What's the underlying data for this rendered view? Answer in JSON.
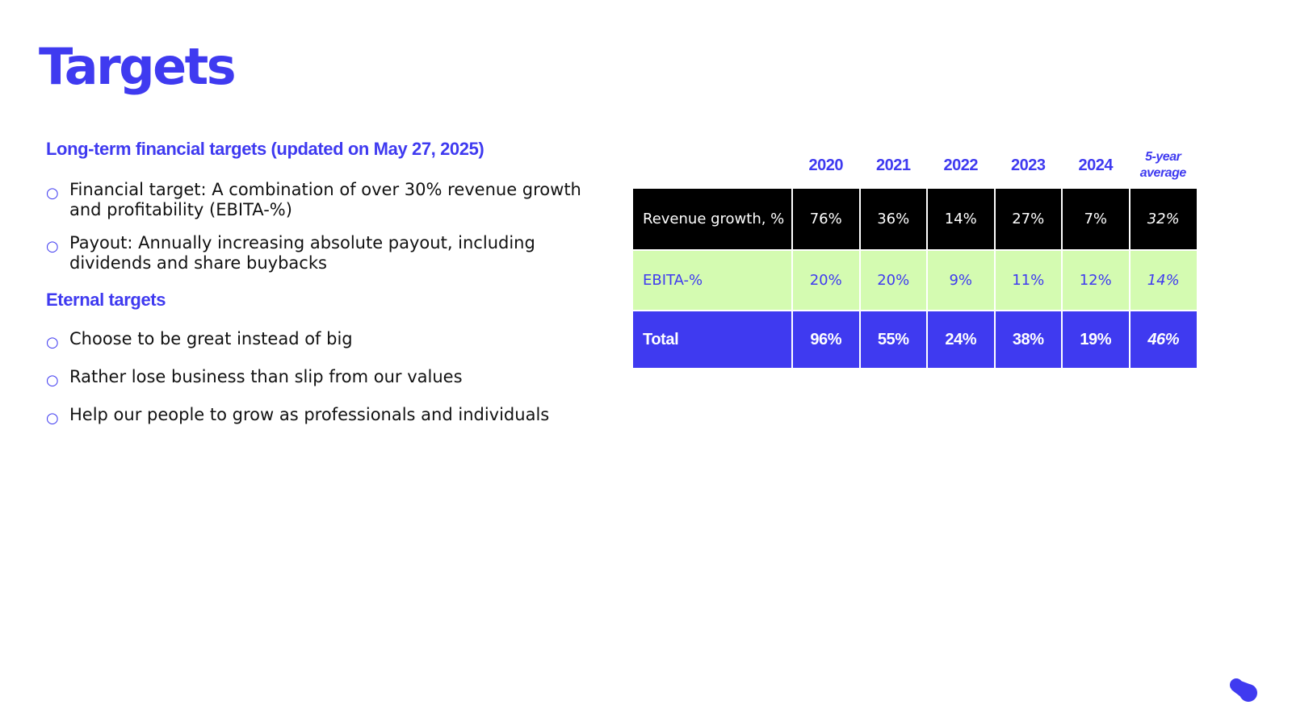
{
  "title": "Targets",
  "financial": {
    "heading": "Long-term financial targets (updated on May 27, 2025)",
    "items": [
      "Financial target: A combination of over 30% revenue growth and profitability (EBITA-%)",
      "Payout: Annually increasing absolute payout, including dividends and share buybacks"
    ]
  },
  "eternal": {
    "heading": "Eternal targets",
    "items": [
      "Choose to be great instead of big",
      "Rather lose business than slip from our values",
      "Help our people to grow as professionals and individuals"
    ]
  },
  "bullet_glyph": "○",
  "table": {
    "columns": [
      "2020",
      "2021",
      "2022",
      "2023",
      "2024"
    ],
    "average_header_line1": "5-year",
    "average_header_line2": "average",
    "rows": [
      {
        "label": "Revenue growth, %",
        "values": [
          "76%",
          "36%",
          "14%",
          "27%",
          "7%"
        ],
        "average": "32%"
      },
      {
        "label": "EBITA-%",
        "values": [
          "20%",
          "20%",
          "9%",
          "11%",
          "12%"
        ],
        "average": "14%"
      },
      {
        "label": "Total",
        "values": [
          "96%",
          "55%",
          "24%",
          "38%",
          "19%"
        ],
        "average": "46%"
      }
    ]
  },
  "colors": {
    "brand": "#3f3af0",
    "revenue_row": "#000000",
    "ebita_row": "#d4fbb1",
    "total_row": "#3f3af0"
  },
  "logo_icon": "brand-logo-icon"
}
